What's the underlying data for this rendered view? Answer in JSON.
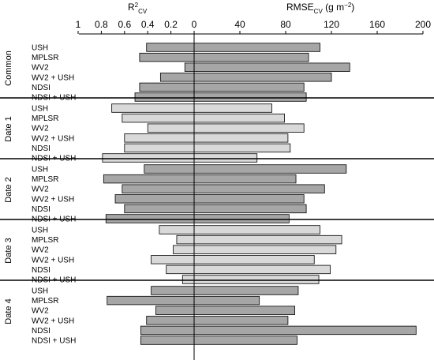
{
  "chart_data": {
    "type": "bar",
    "orientation": "horizontal",
    "layout": "back-to-back",
    "left_axis": {
      "label_main": "R",
      "label_sup": "2",
      "label_sub": "CV",
      "range": [
        1,
        0
      ],
      "ticks": [
        "1",
        "0.8",
        "0.6",
        "0.4",
        "0.2",
        "0"
      ]
    },
    "right_axis": {
      "label_main": "RMSE",
      "label_sub": "CV",
      "label_unit_pre": " (g m",
      "label_unit_sup": "−2",
      "label_unit_post": ")",
      "range": [
        0,
        200
      ],
      "ticks": [
        "40",
        "80",
        "120",
        "160",
        "200"
      ]
    },
    "colors": {
      "dark": "#a6a6a6",
      "light": "#d9d9d9",
      "edge": "#000000"
    },
    "groups": [
      {
        "name": "Common",
        "shade": "dark",
        "rows": [
          {
            "label": "USH",
            "r2cv": 0.41,
            "rmse": 110
          },
          {
            "label": "MPLSR",
            "r2cv": 0.47,
            "rmse": 100
          },
          {
            "label": "WV2",
            "r2cv": 0.08,
            "rmse": 136
          },
          {
            "label": "WV2 + USH",
            "r2cv": 0.29,
            "rmse": 120
          },
          {
            "label": "NDSI",
            "r2cv": 0.47,
            "rmse": 96
          },
          {
            "label": "NDSI + USH",
            "r2cv": 0.51,
            "rmse": 98
          }
        ]
      },
      {
        "name": "Date 1",
        "shade": "light",
        "rows": [
          {
            "label": "USH",
            "r2cv": 0.71,
            "rmse": 68
          },
          {
            "label": "MPLSR",
            "r2cv": 0.62,
            "rmse": 79
          },
          {
            "label": "WV2",
            "r2cv": 0.4,
            "rmse": 96
          },
          {
            "label": "WV2 + USH",
            "r2cv": 0.6,
            "rmse": 82
          },
          {
            "label": "NDSI",
            "r2cv": 0.6,
            "rmse": 84
          },
          {
            "label": "NDSI + USH",
            "r2cv": 0.79,
            "rmse": 55
          }
        ]
      },
      {
        "name": "Date 2",
        "shade": "dark",
        "rows": [
          {
            "label": "USH",
            "r2cv": 0.43,
            "rmse": 133
          },
          {
            "label": "MPLSR",
            "r2cv": 0.78,
            "rmse": 89
          },
          {
            "label": "WV2",
            "r2cv": 0.62,
            "rmse": 114
          },
          {
            "label": "WV2 + USH",
            "r2cv": 0.68,
            "rmse": 96
          },
          {
            "label": "NDSI",
            "r2cv": 0.6,
            "rmse": 98
          },
          {
            "label": "NDSI + USH",
            "r2cv": 0.76,
            "rmse": 83
          }
        ]
      },
      {
        "name": "Date 3",
        "shade": "light",
        "rows": [
          {
            "label": "USH",
            "r2cv": 0.3,
            "rmse": 110
          },
          {
            "label": "MPLSR",
            "r2cv": 0.15,
            "rmse": 129
          },
          {
            "label": "WV2",
            "r2cv": 0.18,
            "rmse": 124
          },
          {
            "label": "WV2 + USH",
            "r2cv": 0.37,
            "rmse": 105
          },
          {
            "label": "NDSI",
            "r2cv": 0.24,
            "rmse": 119
          },
          {
            "label": "NDSI + USH",
            "r2cv": 0.1,
            "rmse": 109
          }
        ]
      },
      {
        "name": "Date 4",
        "shade": "dark",
        "rows": [
          {
            "label": "USH",
            "r2cv": 0.37,
            "rmse": 91
          },
          {
            "label": "MPLSR",
            "r2cv": 0.75,
            "rmse": 57
          },
          {
            "label": "WV2",
            "r2cv": 0.33,
            "rmse": 88
          },
          {
            "label": "WV2 + USH",
            "r2cv": 0.41,
            "rmse": 82
          },
          {
            "label": "NDSI",
            "r2cv": 0.46,
            "rmse": 194
          },
          {
            "label": "NDSI + USH",
            "r2cv": 0.46,
            "rmse": 90
          }
        ]
      }
    ]
  }
}
